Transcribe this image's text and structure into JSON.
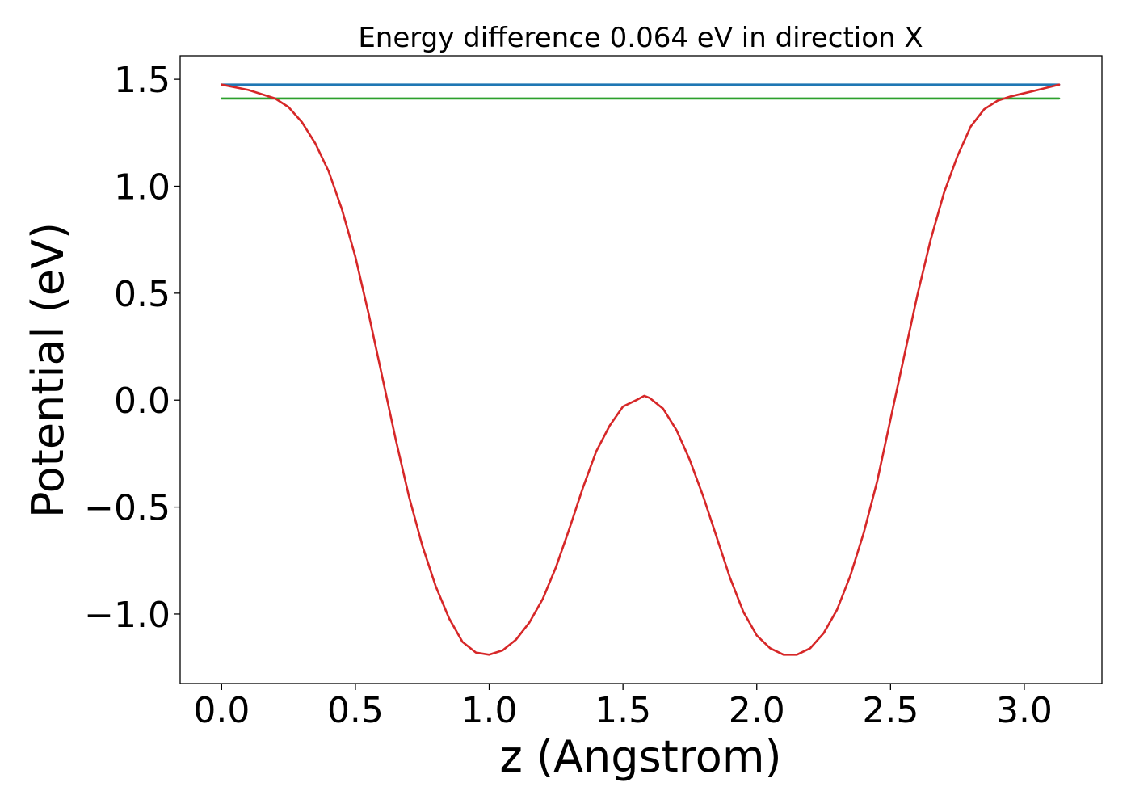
{
  "chart_data": {
    "type": "line",
    "title": "Energy difference 0.064 eV in direction X",
    "xlabel": "z (Angstrom)",
    "ylabel": "Potential (eV)",
    "xlim": [
      -0.155,
      3.29
    ],
    "ylim": [
      -1.325,
      1.61
    ],
    "grid": false,
    "x_ticks": [
      0.0,
      0.5,
      1.0,
      1.5,
      2.0,
      2.5,
      3.0
    ],
    "y_ticks": [
      -1.0,
      -0.5,
      0.0,
      0.5,
      1.0,
      1.5
    ],
    "x_tick_labels": [
      "0.0",
      "0.5",
      "1.0",
      "1.5",
      "2.0",
      "2.5",
      "3.0"
    ],
    "y_tick_labels": [
      "−1.0",
      "−0.5",
      "0.0",
      "0.5",
      "1.0",
      "1.5"
    ],
    "series": [
      {
        "color": "#d62728",
        "x": [
          0.0,
          0.1,
          0.2,
          0.25,
          0.3,
          0.35,
          0.4,
          0.45,
          0.5,
          0.55,
          0.6,
          0.65,
          0.7,
          0.75,
          0.8,
          0.85,
          0.9,
          0.95,
          1.0,
          1.05,
          1.1,
          1.15,
          1.2,
          1.25,
          1.3,
          1.35,
          1.4,
          1.45,
          1.5,
          1.55,
          1.58,
          1.6,
          1.65,
          1.7,
          1.75,
          1.8,
          1.85,
          1.9,
          1.95,
          2.0,
          2.05,
          2.1,
          2.15,
          2.2,
          2.25,
          2.3,
          2.35,
          2.4,
          2.45,
          2.5,
          2.55,
          2.6,
          2.65,
          2.7,
          2.75,
          2.8,
          2.85,
          2.9,
          2.95,
          3.05,
          3.13
        ],
        "y": [
          1.475,
          1.45,
          1.41,
          1.37,
          1.3,
          1.2,
          1.07,
          0.89,
          0.67,
          0.4,
          0.11,
          -0.18,
          -0.45,
          -0.68,
          -0.87,
          -1.02,
          -1.13,
          -1.18,
          -1.19,
          -1.17,
          -1.12,
          -1.04,
          -0.93,
          -0.78,
          -0.6,
          -0.41,
          -0.24,
          -0.12,
          -0.03,
          0.0,
          0.02,
          0.01,
          -0.04,
          -0.14,
          -0.28,
          -0.45,
          -0.64,
          -0.83,
          -0.99,
          -1.1,
          -1.16,
          -1.19,
          -1.19,
          -1.16,
          -1.09,
          -0.98,
          -0.82,
          -0.62,
          -0.38,
          -0.09,
          0.2,
          0.49,
          0.75,
          0.97,
          1.14,
          1.28,
          1.36,
          1.4,
          1.42,
          1.45,
          1.475
        ]
      },
      {
        "color": "#1f77b4",
        "x": [
          0.0,
          3.13
        ],
        "y": [
          1.475,
          1.475
        ]
      },
      {
        "color": "#2ca02c",
        "x": [
          0.0,
          3.13
        ],
        "y": [
          1.41,
          1.41
        ]
      }
    ]
  }
}
